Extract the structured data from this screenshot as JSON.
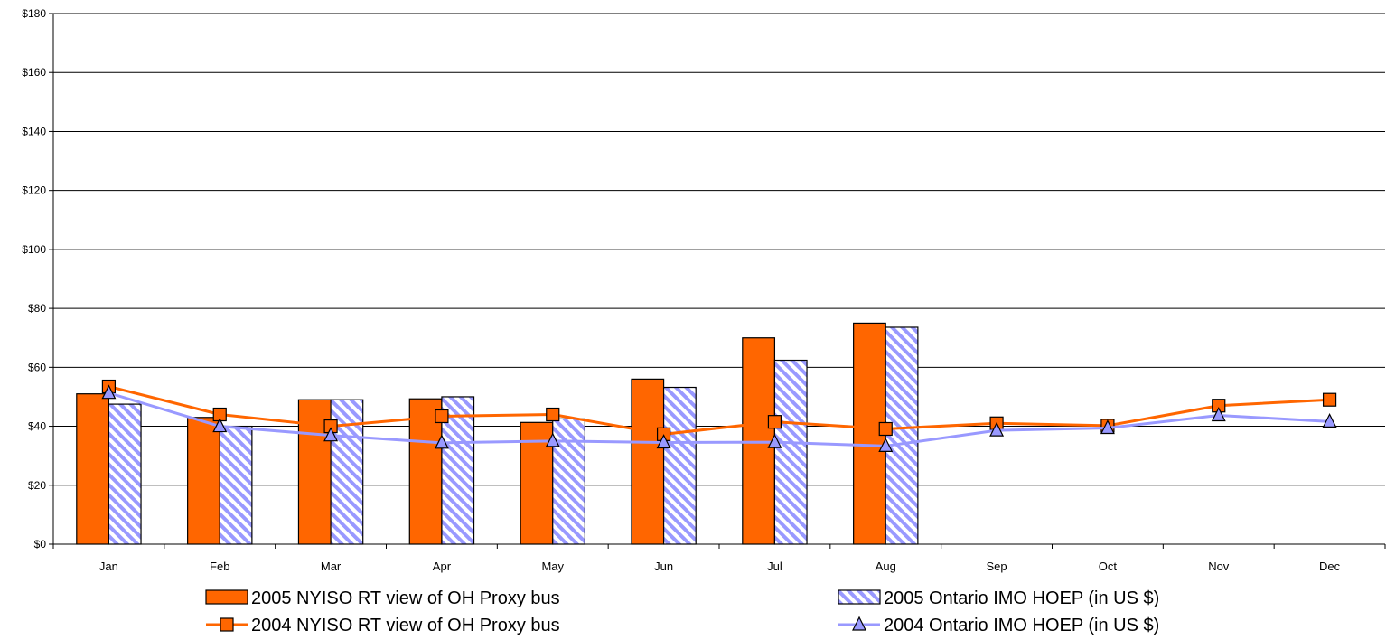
{
  "chart_data": {
    "type": "bar",
    "title": "",
    "xlabel": "",
    "ylabel": "",
    "ylim": [
      0,
      180
    ],
    "y_ticks": [
      0,
      20,
      40,
      60,
      80,
      100,
      120,
      140,
      160,
      180
    ],
    "y_tick_labels": [
      "$0",
      "$20",
      "$40",
      "$60",
      "$80",
      "$100",
      "$120",
      "$140",
      "$160",
      "$180"
    ],
    "grid": true,
    "legend_position": "bottom",
    "categories": [
      "Jan",
      "Feb",
      "Mar",
      "Apr",
      "May",
      "Jun",
      "Jul",
      "Aug",
      "Sep",
      "Oct",
      "Nov",
      "Dec"
    ],
    "series": [
      {
        "name": "2005 NYISO RT view of OH Proxy bus",
        "kind": "bar",
        "color": "#FF6600",
        "values": [
          51,
          43,
          49,
          49.3,
          41.3,
          56,
          70,
          75,
          null,
          null,
          null,
          null
        ]
      },
      {
        "name": "2005 Ontario IMO HOEP (in US $)",
        "kind": "bar",
        "color": "#9999FF",
        "pattern": "diagonal-stripes",
        "values": [
          47.5,
          40,
          49,
          50,
          42.5,
          53.2,
          62.4,
          73.6,
          null,
          null,
          null,
          null
        ]
      },
      {
        "name": "2004 NYISO RT view of OH Proxy bus",
        "kind": "line",
        "marker": "square",
        "color": "#FF6600",
        "values": [
          53.5,
          44,
          40,
          43.4,
          44,
          37.3,
          41.5,
          39.1,
          41,
          40.2,
          47,
          49
        ]
      },
      {
        "name": "2004 Ontario IMO HOEP (in US $)",
        "kind": "line",
        "marker": "triangle",
        "color": "#9999FF",
        "values": [
          51.3,
          40,
          36.9,
          34.4,
          35,
          34.5,
          34.6,
          33.3,
          38.6,
          39.4,
          43.7,
          41.6
        ]
      }
    ]
  }
}
